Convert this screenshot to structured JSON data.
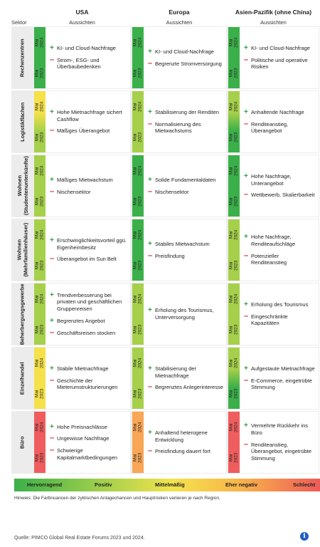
{
  "header": {
    "sektor": "Sektor",
    "regions": [
      {
        "name": "USA",
        "sub": "Aussichten"
      },
      {
        "name": "Europa",
        "sub": "Aussichten"
      },
      {
        "name": "Asien-Pazifik (ohne China)",
        "sub": "Aussichten"
      }
    ]
  },
  "year_labels": {
    "top": "Mai\n2024",
    "bottom": "Mai\n2023"
  },
  "colors": {
    "dark_green": "#3bb04a",
    "green": "#8cc63f",
    "light_green": "#a6d04b",
    "yellow": "#f5e14a",
    "orange": "#f9a656",
    "red": "#ef5d5e"
  },
  "rows": [
    {
      "sector": "Rechenzentren",
      "cells": [
        {
          "c2024": "#3bb04a",
          "c2023": "#3bb04a",
          "items": [
            {
              "s": "+",
              "t": "KI- und Cloud-Nachfrage"
            },
            {
              "s": "-",
              "t": "Strom-, ESG- und Überbaubedenken"
            }
          ]
        },
        {
          "c2024": "#3bb04a",
          "c2023": "#3bb04a",
          "items": [
            {
              "s": "+",
              "t": "KI- und Cloud-Nachfrage"
            },
            {
              "s": "-",
              "t": "Begrenzte Stromversorgung"
            }
          ]
        },
        {
          "c2024": "#3bb04a",
          "c2023": "#3bb04a",
          "items": [
            {
              "s": "+",
              "t": "KI- und Cloud-Nachfrage"
            },
            {
              "s": "-",
              "t": "Politische und operative Risiken"
            }
          ]
        }
      ]
    },
    {
      "sector": "Logistikflächen",
      "cells": [
        {
          "c2024": "#f5e14a",
          "c2023": "#a6d04b",
          "items": [
            {
              "s": "+",
              "t": "Hohe Mietnachfrage sichert Cashflow"
            },
            {
              "s": "-",
              "t": "Mäßiges Überangebot"
            }
          ]
        },
        {
          "c2024": "#a6d04b",
          "c2023": "#a6d04b",
          "items": [
            {
              "s": "+",
              "t": "Stabilisierung der Renditen"
            },
            {
              "s": "-",
              "t": "Normalisierung des Mietwachstums"
            }
          ]
        },
        {
          "c2024": "#a6d04b",
          "c2023": "#3bb04a",
          "items": [
            {
              "s": "+",
              "t": "Anhaltende Nachfrage"
            },
            {
              "s": "-",
              "t": "Renditeanstieg, Überangebot"
            }
          ]
        }
      ]
    },
    {
      "sector": "Wohnen\n(Studentenunterkünfte)",
      "cells": [
        {
          "c2024": "#a6d04b",
          "c2023": "#a6d04b",
          "items": [
            {
              "s": "+",
              "t": "Mäßiges Mietwachstum"
            },
            {
              "s": "-",
              "t": "Nischensektor"
            }
          ]
        },
        {
          "c2024": "#3bb04a",
          "c2023": "#3bb04a",
          "items": [
            {
              "s": "+",
              "t": "Solide Fundamentaldaten"
            },
            {
              "s": "-",
              "t": "Nischensektor"
            }
          ]
        },
        {
          "c2024": "#3bb04a",
          "c2023": "#3bb04a",
          "items": [
            {
              "s": "+",
              "t": "Hohe Nachfrage, Unterangebot"
            },
            {
              "s": "-",
              "t": "Wettbewerb, Skalierbarkeit"
            }
          ]
        }
      ]
    },
    {
      "sector": "Wohnen\n(Mehrfamilienhäuser)",
      "cells": [
        {
          "c2024": "#a6d04b",
          "c2023": "#a6d04b",
          "items": [
            {
              "s": "+",
              "t": "Erschwinglichkeitsvorteil ggü. Eigenheimbesitz"
            },
            {
              "s": "-",
              "t": "Überangebot im Sun Belt"
            }
          ]
        },
        {
          "c2024": "#3bb04a",
          "c2023": "#3bb04a",
          "items": [
            {
              "s": "+",
              "t": "Stabiles Mietwachstum"
            },
            {
              "s": "-",
              "t": "Preisfindung"
            }
          ]
        },
        {
          "c2024": "#a6d04b",
          "c2023": "#a6d04b",
          "items": [
            {
              "s": "+",
              "t": "Hohe Nachfrage, Renditeaufschläge"
            },
            {
              "s": "-",
              "t": "Potenzieller Renditeanstieg"
            }
          ]
        }
      ]
    },
    {
      "sector": "Beherbergungsgewerbe",
      "cells": [
        {
          "c2024": "#a6d04b",
          "c2023": "#a6d04b",
          "items": [
            {
              "s": "+",
              "t": "Trendverbesserung bei privaten und geschäftlichen Gruppenreisen"
            },
            {
              "s": "+",
              "t": "Begrenztes Angebot"
            },
            {
              "s": "-",
              "t": "Geschäftsreisen stocken"
            }
          ]
        },
        {
          "c2024": "#a6d04b",
          "c2023": "#a6d04b",
          "items": [
            {
              "s": "+",
              "t": "Erholung des Tourismus, Unterversorgung"
            }
          ]
        },
        {
          "c2024": "#a6d04b",
          "c2023": "#a6d04b",
          "items": [
            {
              "s": "+",
              "t": "Erholung des Tourismus"
            },
            {
              "s": "-",
              "t": "Eingeschränkte Kapazitäten"
            }
          ]
        }
      ]
    },
    {
      "sector": "Einzelhandel",
      "cells": [
        {
          "c2024": "#f5e14a",
          "c2023": "#f5e14a",
          "items": [
            {
              "s": "+",
              "t": "Stabile Mietnachfrage"
            },
            {
              "s": "-",
              "t": "Geschichte der Mieterumstrukturierungen"
            }
          ]
        },
        {
          "c2024": "#a6d04b",
          "c2023": "#a6d04b",
          "items": [
            {
              "s": "+",
              "t": "Stabilisierung der Mietnachfrage"
            },
            {
              "s": "-",
              "t": "Begrenztes Anlegerinteresse"
            }
          ]
        },
        {
          "c2024": "#a6d04b",
          "c2023": "#3bb04a",
          "items": [
            {
              "s": "+",
              "t": "Aufgestaute Mietnachfrage"
            },
            {
              "s": "-",
              "t": "E-Commerce, eingetrübte Stimmung"
            }
          ]
        }
      ]
    },
    {
      "sector": "Büro",
      "cells": [
        {
          "c2024": "#ef5d5e",
          "c2023": "#ef5d5e",
          "items": [
            {
              "s": "+",
              "t": "Hohe Preisnachlässe"
            },
            {
              "s": "-",
              "t": "Ungewisse Nachfrage"
            },
            {
              "s": "-",
              "t": "Schwierige Kapitalmarktbedingungen"
            }
          ]
        },
        {
          "c2024": "#f9a656",
          "c2023": "#f9a656",
          "items": [
            {
              "s": "+",
              "t": "Anhaltend heterogene Entwicklung"
            },
            {
              "s": "-",
              "t": "Preisfindung dauert fort"
            }
          ]
        },
        {
          "c2024": "#ef5d5e",
          "c2023": "#ef5d5e",
          "items": [
            {
              "s": "+",
              "t": "Vermehrte Rückkehr ins Büro"
            },
            {
              "s": "-",
              "t": "Renditeanstieg, Überangebot, eingetrübte Stimmung"
            }
          ]
        }
      ]
    }
  ],
  "chart_data": {
    "type": "table",
    "years": [
      "Mai 2024",
      "Mai 2023"
    ],
    "scale": [
      "Hervorragend",
      "Positiv",
      "Mittelmäßig",
      "Eher negativ",
      "Schlecht"
    ],
    "columns": [
      "USA",
      "Europa",
      "Asien-Pazifik (ohne China)"
    ],
    "rows": [
      "Rechenzentren",
      "Logistikflächen",
      "Wohnen (Studentenunterkünfte)",
      "Wohnen (Mehrfamilienhäuser)",
      "Beherbergungsgewerbe",
      "Einzelhandel",
      "Büro"
    ]
  },
  "legend": [
    "Hervorragend",
    "Positiv",
    "Mittelmäßig",
    "Eher negativ",
    "Schlecht"
  ],
  "note": "Hinweis: Die Farbnuancen der zyklischen Anlagechancen und Hauptrisiken variieren je nach Region.",
  "source": "Quelle: PIMCO Global Real Estate Forums 2023 und 2024.",
  "info_icon": "i"
}
